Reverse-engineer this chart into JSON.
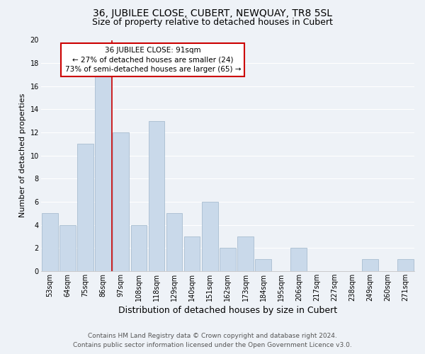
{
  "title": "36, JUBILEE CLOSE, CUBERT, NEWQUAY, TR8 5SL",
  "subtitle": "Size of property relative to detached houses in Cubert",
  "xlabel": "Distribution of detached houses by size in Cubert",
  "ylabel": "Number of detached properties",
  "bar_labels": [
    "53sqm",
    "64sqm",
    "75sqm",
    "86sqm",
    "97sqm",
    "108sqm",
    "118sqm",
    "129sqm",
    "140sqm",
    "151sqm",
    "162sqm",
    "173sqm",
    "184sqm",
    "195sqm",
    "206sqm",
    "217sqm",
    "227sqm",
    "238sqm",
    "249sqm",
    "260sqm",
    "271sqm"
  ],
  "bar_values": [
    5,
    4,
    11,
    17,
    12,
    4,
    13,
    5,
    3,
    6,
    2,
    3,
    1,
    0,
    2,
    0,
    0,
    0,
    1,
    0,
    1
  ],
  "bar_color": "#c9d9ea",
  "bar_edge_color": "#a8bdd0",
  "property_line_x": 3.5,
  "property_line_color": "#cc0000",
  "ylim": [
    0,
    20
  ],
  "yticks": [
    0,
    2,
    4,
    6,
    8,
    10,
    12,
    14,
    16,
    18,
    20
  ],
  "annotation_title": "36 JUBILEE CLOSE: 91sqm",
  "annotation_line1": "← 27% of detached houses are smaller (24)",
  "annotation_line2": "73% of semi-detached houses are larger (65) →",
  "annotation_box_color": "#ffffff",
  "annotation_box_edge": "#cc0000",
  "footer_line1": "Contains HM Land Registry data © Crown copyright and database right 2024.",
  "footer_line2": "Contains public sector information licensed under the Open Government Licence v3.0.",
  "background_color": "#eef2f7",
  "plot_background_color": "#eef2f7",
  "grid_color": "#ffffff",
  "title_fontsize": 10,
  "subtitle_fontsize": 9,
  "xlabel_fontsize": 9,
  "ylabel_fontsize": 8,
  "tick_fontsize": 7,
  "annotation_fontsize": 7.5,
  "footer_fontsize": 6.5
}
